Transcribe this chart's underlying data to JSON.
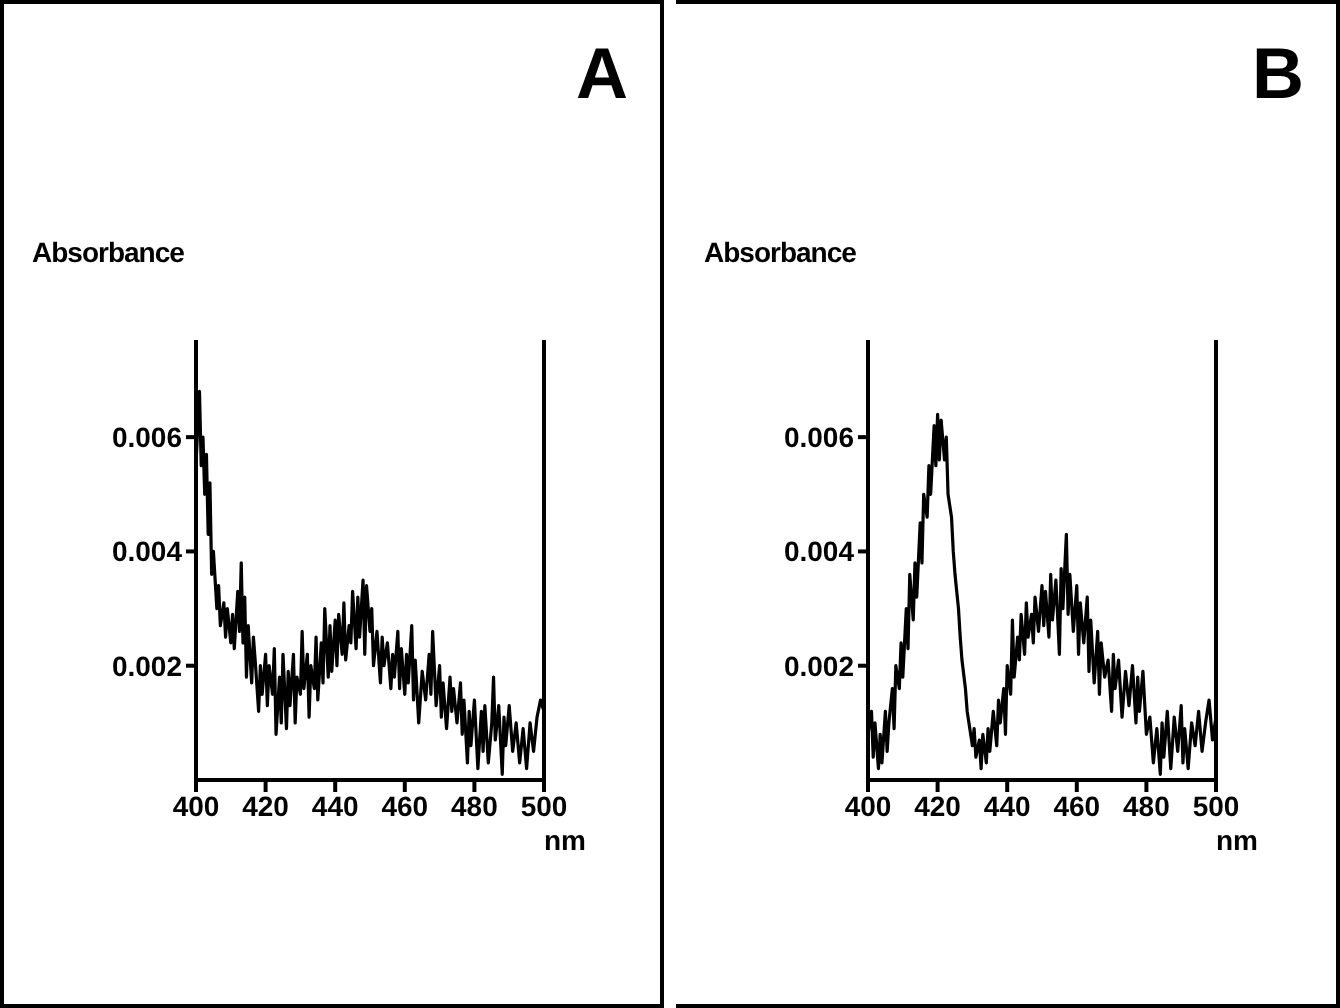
{
  "chart_data": [
    {
      "type": "line",
      "title": "A",
      "ylabel": "Absorbance",
      "xlabel": "nm",
      "xlim": [
        400,
        500
      ],
      "xticks": [
        400,
        420,
        440,
        460,
        480,
        500
      ],
      "ylim": [
        0,
        0.0077
      ],
      "yticks": [
        0.002,
        0.004,
        0.006
      ],
      "grid": false,
      "legend": false,
      "marker": "none",
      "line_style": "solid",
      "series": [
        {
          "color": "#000000",
          "x": [
            400,
            400.5,
            401,
            401.5,
            402,
            402.5,
            403,
            403.5,
            404,
            404.5,
            405,
            406,
            406.5,
            407,
            408,
            408.5,
            409,
            410,
            410.5,
            411,
            412,
            412.5,
            413,
            413.5,
            414,
            414.5,
            415,
            416,
            416.5,
            417,
            418,
            418.5,
            419,
            420,
            420.5,
            421,
            422,
            422.5,
            423,
            424,
            424.5,
            425,
            426,
            426.5,
            427,
            428,
            428.5,
            429,
            430,
            430.5,
            431,
            432,
            432.5,
            433,
            434,
            434.5,
            435,
            436,
            436.5,
            437,
            438,
            438.5,
            439,
            440,
            440.5,
            441,
            442,
            442.5,
            443,
            444,
            444.5,
            445,
            446,
            446.5,
            447,
            448,
            448.5,
            449,
            450,
            450.5,
            451,
            452,
            453,
            453.5,
            454,
            455,
            456,
            456.5,
            457,
            458,
            458.5,
            459,
            460,
            460.5,
            461,
            462,
            462.5,
            463,
            464,
            465,
            466,
            467,
            467.5,
            468,
            469,
            470,
            470.5,
            471,
            472,
            473,
            473.5,
            474,
            475,
            476,
            476.5,
            477,
            478,
            478.5,
            479,
            480,
            481,
            482,
            482.5,
            483,
            484,
            485,
            485.5,
            486,
            487,
            488,
            488.5,
            489,
            490,
            491,
            492,
            493,
            494,
            495,
            496,
            497,
            498,
            499,
            500
          ],
          "values": [
            0.0055,
            0.0062,
            0.0068,
            0.0055,
            0.006,
            0.005,
            0.0057,
            0.0043,
            0.0052,
            0.0036,
            0.004,
            0.003,
            0.0034,
            0.0027,
            0.0031,
            0.0025,
            0.003,
            0.0024,
            0.0029,
            0.0023,
            0.0033,
            0.0026,
            0.0038,
            0.0024,
            0.0032,
            0.0018,
            0.0027,
            0.0017,
            0.0025,
            0.0021,
            0.0012,
            0.002,
            0.0015,
            0.0022,
            0.0013,
            0.002,
            0.0015,
            0.0023,
            0.0008,
            0.0018,
            0.001,
            0.0022,
            0.0009,
            0.0019,
            0.0013,
            0.0022,
            0.001,
            0.0018,
            0.0015,
            0.0026,
            0.0016,
            0.0022,
            0.0011,
            0.002,
            0.0016,
            0.0025,
            0.0014,
            0.0024,
            0.0017,
            0.003,
            0.0018,
            0.0027,
            0.0019,
            0.0028,
            0.002,
            0.0029,
            0.0022,
            0.0031,
            0.0021,
            0.0027,
            0.0024,
            0.0033,
            0.0023,
            0.0032,
            0.0025,
            0.0035,
            0.0022,
            0.0034,
            0.0026,
            0.003,
            0.002,
            0.0026,
            0.0017,
            0.0025,
            0.002,
            0.0024,
            0.0016,
            0.0022,
            0.0018,
            0.0026,
            0.0016,
            0.0023,
            0.0015,
            0.0022,
            0.0017,
            0.0027,
            0.0014,
            0.0021,
            0.001,
            0.0019,
            0.0014,
            0.0022,
            0.0015,
            0.0026,
            0.0013,
            0.002,
            0.0011,
            0.0017,
            0.0009,
            0.0018,
            0.0012,
            0.0016,
            0.001,
            0.0017,
            0.0008,
            0.0014,
            0.0003,
            0.0012,
            0.0006,
            0.0014,
            0.0002,
            0.0012,
            0.0005,
            0.0013,
            0.0003,
            0.001,
            0.0018,
            0.0007,
            0.0013,
            0.0001,
            0.0011,
            0.0006,
            0.0013,
            0.0005,
            0.001,
            0.0003,
            0.0009,
            0.0002,
            0.001,
            0.0005,
            0.0011,
            0.0014,
            0.0012
          ]
        }
      ]
    },
    {
      "type": "line",
      "title": "B",
      "ylabel": "Absorbance",
      "xlabel": "nm",
      "xlim": [
        400,
        500
      ],
      "xticks": [
        400,
        420,
        440,
        460,
        480,
        500
      ],
      "ylim": [
        0,
        0.0077
      ],
      "yticks": [
        0.002,
        0.004,
        0.006
      ],
      "grid": false,
      "legend": false,
      "marker": "none",
      "line_style": "solid",
      "series": [
        {
          "color": "#000000",
          "x": [
            400,
            401,
            401.5,
            402,
            403,
            403.5,
            404,
            405,
            405.5,
            406,
            407,
            407.5,
            408,
            409,
            409.5,
            410,
            411,
            411.5,
            412,
            413,
            413.5,
            414,
            415,
            415.5,
            416,
            417,
            417.5,
            418,
            419,
            419.5,
            420,
            420.5,
            421,
            422,
            422.5,
            423,
            424,
            424.5,
            425,
            426,
            426.5,
            427,
            428,
            428.5,
            429,
            430,
            430.5,
            431,
            432,
            432.5,
            433,
            434,
            434.5,
            435,
            436,
            437,
            437.5,
            438,
            439,
            439.5,
            440,
            441,
            441.5,
            442,
            443,
            443.5,
            444,
            445,
            445.5,
            446,
            447,
            447.5,
            448,
            449,
            450,
            450.5,
            451,
            452,
            452.5,
            453,
            454,
            455,
            455.5,
            456,
            457,
            457.5,
            458,
            459,
            460,
            460.5,
            461,
            462,
            463,
            463.5,
            464,
            465,
            466,
            466.5,
            467,
            468,
            469,
            470,
            470.5,
            471,
            472,
            473,
            474,
            475,
            476,
            477,
            477.5,
            478,
            479,
            480,
            481,
            482,
            483,
            484,
            484.5,
            485,
            486,
            487,
            488,
            489,
            490,
            490.5,
            491,
            492,
            493,
            494,
            495,
            496,
            497,
            498,
            499,
            500
          ],
          "values": [
            0.0008,
            0.0012,
            0.0004,
            0.001,
            0.0002,
            0.0008,
            0.0003,
            0.0012,
            0.0005,
            0.001,
            0.0016,
            0.0009,
            0.002,
            0.0016,
            0.0024,
            0.0018,
            0.003,
            0.0023,
            0.0036,
            0.0028,
            0.0038,
            0.0032,
            0.0045,
            0.0038,
            0.005,
            0.0046,
            0.0055,
            0.005,
            0.0062,
            0.0055,
            0.0064,
            0.0056,
            0.0063,
            0.0056,
            0.006,
            0.005,
            0.0046,
            0.004,
            0.0036,
            0.003,
            0.0025,
            0.0021,
            0.0016,
            0.0012,
            0.001,
            0.0006,
            0.0009,
            0.0004,
            0.0007,
            0.0002,
            0.0008,
            0.0003,
            0.0009,
            0.0005,
            0.0012,
            0.0006,
            0.0014,
            0.001,
            0.0016,
            0.0008,
            0.002,
            0.0015,
            0.0028,
            0.0018,
            0.0025,
            0.0021,
            0.0029,
            0.0022,
            0.0031,
            0.0025,
            0.0029,
            0.0024,
            0.0032,
            0.0026,
            0.0034,
            0.0027,
            0.0033,
            0.0025,
            0.0036,
            0.0028,
            0.0035,
            0.0022,
            0.0037,
            0.003,
            0.0043,
            0.0029,
            0.0036,
            0.0026,
            0.0034,
            0.0022,
            0.0031,
            0.0024,
            0.0032,
            0.0019,
            0.0028,
            0.0017,
            0.0026,
            0.0015,
            0.0024,
            0.0018,
            0.0021,
            0.0012,
            0.0022,
            0.0016,
            0.0021,
            0.0011,
            0.0019,
            0.0013,
            0.002,
            0.001,
            0.0018,
            0.0012,
            0.0019,
            0.0008,
            0.0011,
            0.0003,
            0.0009,
            0.0001,
            0.001,
            0.0004,
            0.0012,
            0.0002,
            0.0011,
            0.0005,
            0.0013,
            0.0003,
            0.0009,
            0.0002,
            0.001,
            0.0006,
            0.0012,
            0.0005,
            0.001,
            0.0014,
            0.0007,
            0.0011
          ]
        }
      ]
    }
  ]
}
